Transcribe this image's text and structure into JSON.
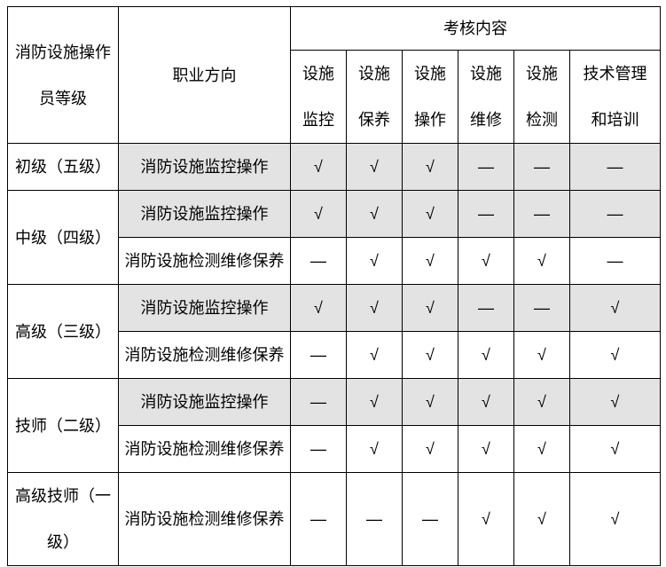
{
  "colors": {
    "shaded_row_bg": "#e3e3e3",
    "border": "#000000",
    "text": "#000000",
    "page_bg": "#ffffff"
  },
  "table": {
    "header": {
      "col_level": {
        "line1": "消防设施操作",
        "line2": "员等级"
      },
      "col_direction": "职业方向",
      "assessment_group": "考核内容",
      "sub_columns": [
        {
          "line1": "设施",
          "line2": "监控"
        },
        {
          "line1": "设施",
          "line2": "保养"
        },
        {
          "line1": "设施",
          "line2": "操作"
        },
        {
          "line1": "设施",
          "line2": "维修"
        },
        {
          "line1": "设施",
          "line2": "检测"
        },
        {
          "line1": "技术管理",
          "line2": "和培训"
        }
      ]
    },
    "symbols": {
      "check": "√",
      "dash": "—"
    },
    "rows": [
      {
        "level": "初级（五级）",
        "direction": "消防设施监控操作",
        "shaded": true,
        "marks": [
          "√",
          "√",
          "√",
          "—",
          "—",
          "—"
        ]
      },
      {
        "level": "中级（四级）",
        "direction": "消防设施监控操作",
        "shaded": true,
        "marks": [
          "√",
          "√",
          "√",
          "—",
          "—",
          "—"
        ]
      },
      {
        "direction": "消防设施检测维修保养",
        "shaded": false,
        "marks": [
          "—",
          "√",
          "√",
          "√",
          "√",
          "—"
        ]
      },
      {
        "level": "高级（三级）",
        "direction": "消防设施监控操作",
        "shaded": true,
        "marks": [
          "√",
          "√",
          "√",
          "—",
          "—",
          "√"
        ]
      },
      {
        "direction": "消防设施检测维修保养",
        "shaded": false,
        "marks": [
          "—",
          "√",
          "√",
          "√",
          "√",
          "√"
        ]
      },
      {
        "level": "技师（二级）",
        "direction": "消防设施监控操作",
        "shaded": true,
        "marks": [
          "—",
          "√",
          "√",
          "√",
          "√",
          "√"
        ]
      },
      {
        "direction": "消防设施检测维修保养",
        "shaded": false,
        "marks": [
          "—",
          "√",
          "√",
          "√",
          "√",
          "√"
        ]
      },
      {
        "level": {
          "line1": "高级技师（一",
          "line2": "级）"
        },
        "direction": "消防设施检测维修保养",
        "shaded": false,
        "marks": [
          "—",
          "—",
          "—",
          "√",
          "√",
          "√"
        ]
      }
    ]
  }
}
